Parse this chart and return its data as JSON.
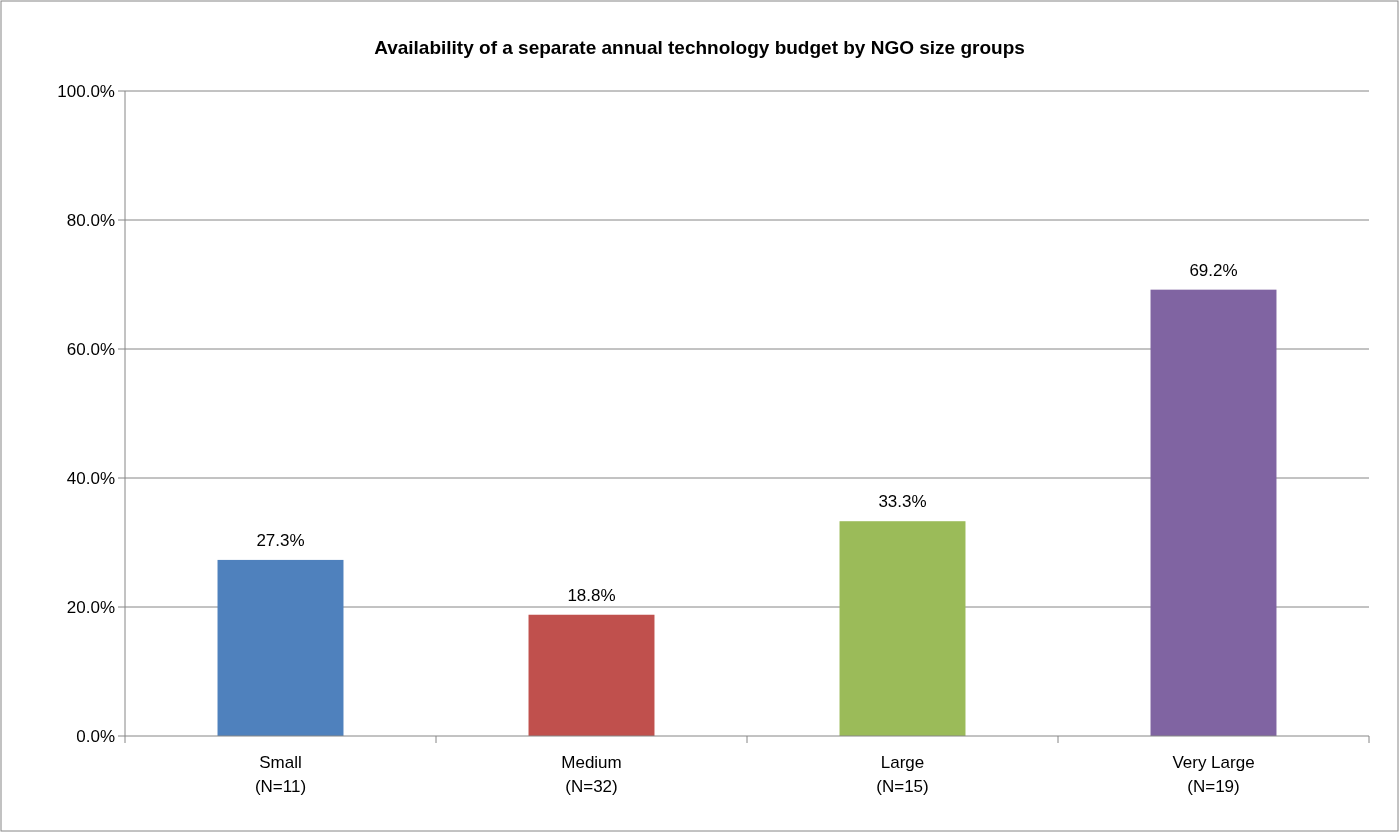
{
  "chart_data": {
    "type": "bar",
    "title": "Availability of a separate annual technology budget by NGO size groups",
    "categories": [
      "Small\n(N=11)",
      "Medium\n(N=32)",
      "Large\n(N=15)",
      "Very Large\n(N=19)"
    ],
    "values": [
      27.3,
      18.8,
      33.3,
      69.2
    ],
    "colors": [
      "#4f81bd",
      "#c0504d",
      "#9bbb59",
      "#8064a2"
    ],
    "value_labels": [
      "27.3%",
      "18.8%",
      "33.3%",
      "69.2%"
    ],
    "ylim": [
      0,
      100
    ],
    "yticks": [
      {
        "value": 0,
        "label": "0.0%"
      },
      {
        "value": 20,
        "label": "20.0%"
      },
      {
        "value": 40,
        "label": "40.0%"
      },
      {
        "value": 60,
        "label": "60.0%"
      },
      {
        "value": 80,
        "label": "80.0%"
      },
      {
        "value": 100,
        "label": "100.0%"
      }
    ],
    "grid": "y"
  }
}
